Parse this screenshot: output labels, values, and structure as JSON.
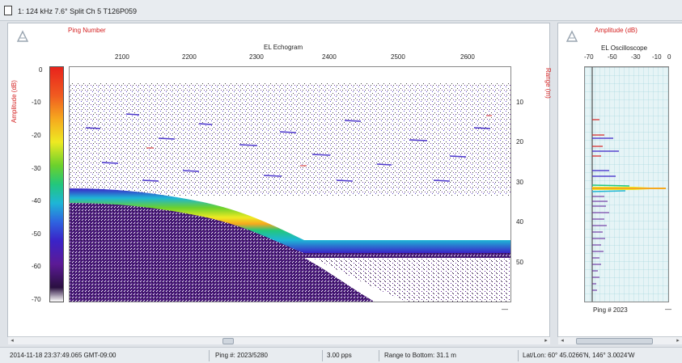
{
  "window": {
    "title": "1: 124 kHz 7.6° Split Ch 5 T126P059"
  },
  "echogram": {
    "title": "EL Echogram",
    "ping_axis_label": "Ping Number",
    "amplitude_axis_label": "Amplitude (dB)",
    "range_axis_label": "Range (m)",
    "ping_ticks": [
      "2100",
      "2200",
      "2300",
      "2400",
      "2500",
      "2600"
    ],
    "amplitude_ticks": [
      "0",
      "-10",
      "-20",
      "-30",
      "-40",
      "-50",
      "-60",
      "-70"
    ],
    "range_ticks": [
      "10",
      "20",
      "30",
      "40",
      "50"
    ],
    "corner_mark": "—"
  },
  "oscilloscope": {
    "title": "EL Oscilloscope",
    "amplitude_axis_label": "Amplitude (dB)",
    "amplitude_ticks": [
      "-70",
      "-50",
      "-30",
      "-10",
      "0"
    ],
    "ping_label": "Ping # 2023",
    "corner_mark": "—"
  },
  "status": {
    "timestamp": "2014-11-18 23:37:49.065 GMT-09:00",
    "ping": "Ping #: 2023/5280",
    "rate": "3.00 pps",
    "range_to_bottom": "Range to Bottom: 31.1 m",
    "latlon": "Lat/Lon: 60° 45.0266'N, 146° 3.0024'W"
  },
  "colors": {
    "accent_red": "#d42020",
    "bottom_echo": "#22c77c",
    "plankton": "#3a23c8"
  }
}
